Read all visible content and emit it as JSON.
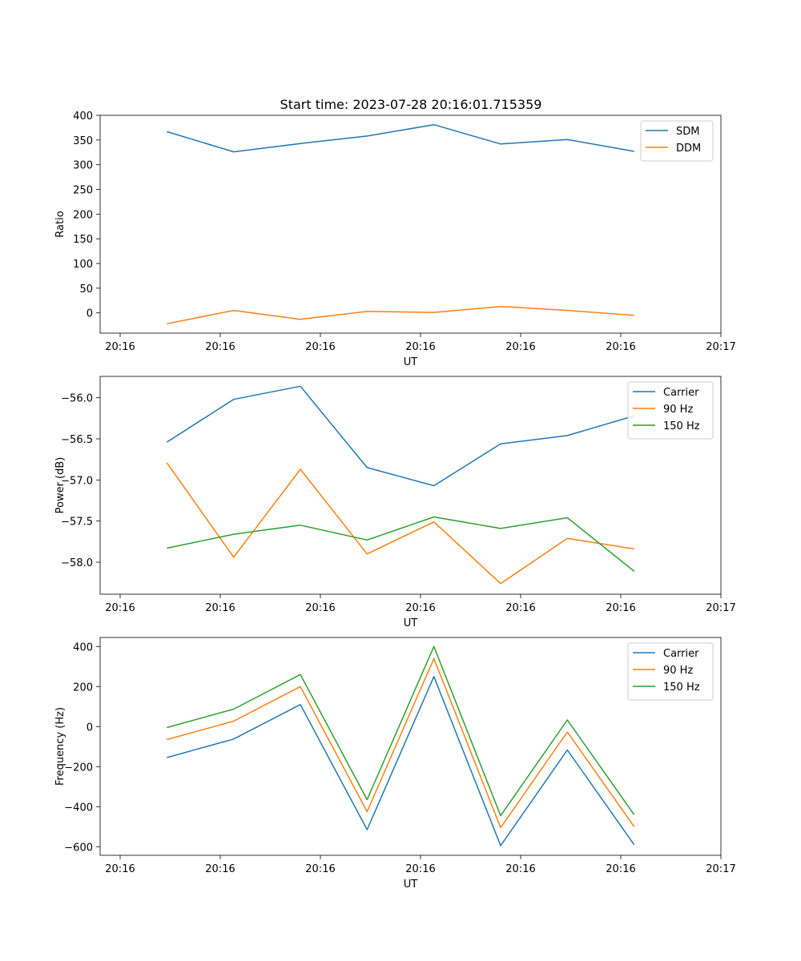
{
  "title": "Start time: 2023-07-28 20:16:01.715359",
  "colors": {
    "blue": "#1f77b4",
    "orange": "#ff7f0e",
    "green": "#2ca02c"
  },
  "chart_data": [
    {
      "type": "line",
      "title": "Start time: 2023-07-28 20:16:01.715359",
      "xlabel": "UT",
      "ylabel": "Ratio",
      "x": [
        1,
        2,
        3,
        4,
        5,
        6,
        7,
        8
      ],
      "xlim": [
        0,
        9.3
      ],
      "x_ticks": [
        0.3,
        1.8,
        3.3,
        4.8,
        6.3,
        7.8,
        9.3
      ],
      "x_tick_labels": [
        "20:16",
        "20:16",
        "20:16",
        "20:16",
        "20:16",
        "20:16",
        "20:17"
      ],
      "ylim": [
        -41,
        400
      ],
      "y_ticks": [
        0,
        50,
        100,
        150,
        200,
        250,
        300,
        350,
        400
      ],
      "y_tick_labels": [
        "0",
        "50",
        "100",
        "150",
        "200",
        "250",
        "300",
        "350",
        "400"
      ],
      "legend": "top-right",
      "series": [
        {
          "name": "SDM",
          "color": "#1f77b4",
          "values": [
            367,
            326,
            343,
            358,
            381,
            342,
            351,
            327
          ]
        },
        {
          "name": "DDM",
          "color": "#ff7f0e",
          "values": [
            -22,
            5,
            -13,
            3,
            1,
            13,
            5,
            -5
          ]
        }
      ]
    },
    {
      "type": "line",
      "xlabel": "UT",
      "ylabel": "Power (dB)",
      "x": [
        1,
        2,
        3,
        4,
        5,
        6,
        7,
        8
      ],
      "xlim": [
        0,
        9.3
      ],
      "x_ticks": [
        0.3,
        1.8,
        3.3,
        4.8,
        6.3,
        7.8,
        9.3
      ],
      "x_tick_labels": [
        "20:16",
        "20:16",
        "20:16",
        "20:16",
        "20:16",
        "20:16",
        "20:17"
      ],
      "ylim": [
        -58.39,
        -55.74
      ],
      "y_ticks": [
        -56.0,
        -56.5,
        -57.0,
        -57.5,
        -58.0
      ],
      "y_tick_labels": [
        "−56.0",
        "−56.5",
        "−57.0",
        "−57.5",
        "−58.0"
      ],
      "legend": "top-right",
      "series": [
        {
          "name": "Carrier",
          "color": "#1f77b4",
          "values": [
            -56.54,
            -56.02,
            -55.86,
            -56.85,
            -57.07,
            -56.56,
            -56.46,
            -56.22
          ]
        },
        {
          "name": "90 Hz",
          "color": "#ff7f0e",
          "values": [
            -56.79,
            -57.94,
            -56.87,
            -57.9,
            -57.51,
            -58.26,
            -57.71,
            -57.84
          ]
        },
        {
          "name": "150 Hz",
          "color": "#2ca02c",
          "values": [
            -57.83,
            -57.66,
            -57.55,
            -57.73,
            -57.45,
            -57.59,
            -57.46,
            -58.11
          ]
        }
      ]
    },
    {
      "type": "line",
      "xlabel": "UT",
      "ylabel": "Frequency (Hz)",
      "x": [
        1,
        2,
        3,
        4,
        5,
        6,
        7,
        8
      ],
      "xlim": [
        0,
        9.3
      ],
      "x_ticks": [
        0.3,
        1.8,
        3.3,
        4.8,
        6.3,
        7.8,
        9.3
      ],
      "x_tick_labels": [
        "20:16",
        "20:16",
        "20:16",
        "20:16",
        "20:16",
        "20:16",
        "20:17"
      ],
      "ylim": [
        -643,
        445
      ],
      "y_ticks": [
        400,
        200,
        0,
        -200,
        -400,
        -600
      ],
      "y_tick_labels": [
        "400",
        "200",
        "0",
        "−200",
        "−400",
        "−600"
      ],
      "legend": "top-right",
      "series": [
        {
          "name": "Carrier",
          "color": "#1f77b4",
          "values": [
            -155,
            -62,
            110,
            -515,
            250,
            -595,
            -117,
            -590
          ]
        },
        {
          "name": "90 Hz",
          "color": "#ff7f0e",
          "values": [
            -65,
            27,
            200,
            -425,
            340,
            -505,
            -27,
            -500
          ]
        },
        {
          "name": "150 Hz",
          "color": "#2ca02c",
          "values": [
            -5,
            87,
            260,
            -365,
            400,
            -445,
            33,
            -440
          ]
        }
      ]
    }
  ]
}
